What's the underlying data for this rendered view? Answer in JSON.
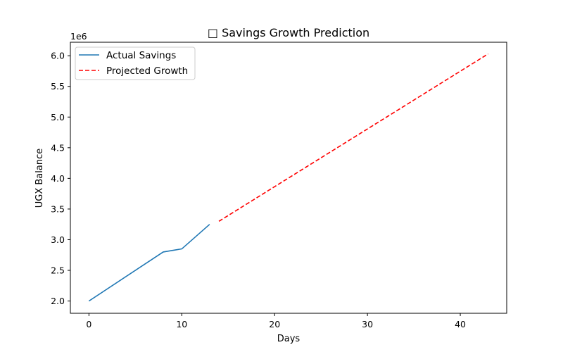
{
  "chart_data": {
    "type": "line",
    "title": "□ Savings Growth Prediction",
    "xlabel": "Days",
    "ylabel": "UGX Balance",
    "y_offset_label": "1e6",
    "xlim": [
      -2,
      45
    ],
    "ylim": [
      1.8,
      6.22
    ],
    "x_ticks": [
      0,
      10,
      20,
      30,
      40
    ],
    "x_tick_labels": [
      "0",
      "10",
      "20",
      "30",
      "40"
    ],
    "y_ticks": [
      2.0,
      2.5,
      3.0,
      3.5,
      4.0,
      4.5,
      5.0,
      5.5,
      6.0
    ],
    "y_tick_labels": [
      "2.0",
      "2.5",
      "3.0",
      "3.5",
      "4.0",
      "4.5",
      "5.0",
      "5.5",
      "6.0"
    ],
    "grid": false,
    "legend_position": "top-left",
    "series": [
      {
        "name": "Actual Savings",
        "color": "#1f77b4",
        "style": "solid",
        "x": [
          0,
          8,
          10,
          13
        ],
        "y": [
          2.0,
          2.8,
          2.85,
          3.25
        ]
      },
      {
        "name": "Projected Growth",
        "color": "#ff0000",
        "style": "dashed",
        "x": [
          14,
          43
        ],
        "y": [
          3.3,
          6.03
        ]
      }
    ]
  }
}
